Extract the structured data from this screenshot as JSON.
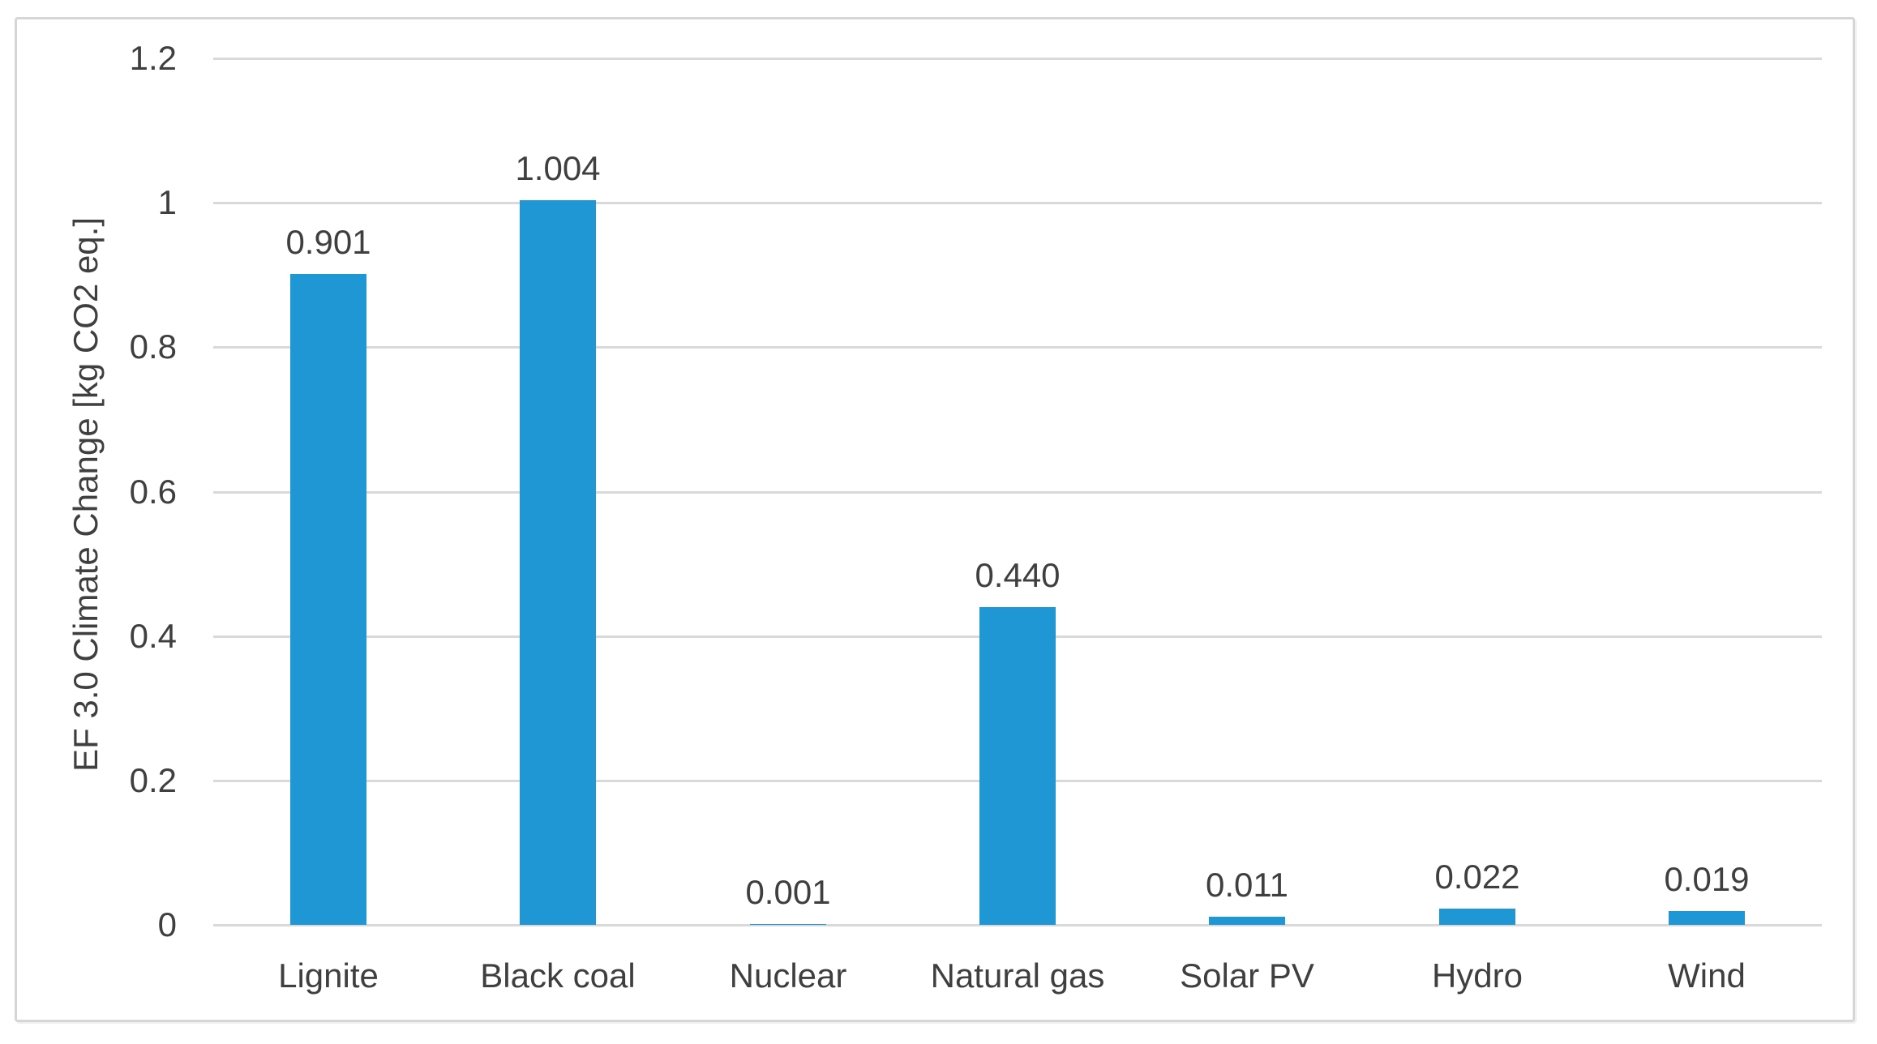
{
  "chart_data": {
    "type": "bar",
    "title": "",
    "xlabel": "",
    "ylabel": "EF 3.0 Climate Change [kg CO2 eq.]",
    "categories": [
      "Lignite",
      "Black coal",
      "Nuclear",
      "Natural gas",
      "Solar PV",
      "Hydro",
      "Wind"
    ],
    "values": [
      0.901,
      1.004,
      0.001,
      0.44,
      0.011,
      0.022,
      0.019
    ],
    "bar_value_labels": [
      "0.901",
      "1.004",
      "0.001",
      "0.440",
      "0.011",
      "0.022",
      "0.019"
    ],
    "ylim": [
      0,
      1.2
    ],
    "ytick_interval": 0.2,
    "yticks": [
      {
        "label": "0",
        "value": 0.0
      },
      {
        "label": "0.2",
        "value": 0.2
      },
      {
        "label": "0.4",
        "value": 0.4
      },
      {
        "label": "0.6",
        "value": 0.6
      },
      {
        "label": "0.8",
        "value": 0.8
      },
      {
        "label": "1",
        "value": 1.0
      },
      {
        "label": "1.2",
        "value": 1.2
      }
    ],
    "grid": true,
    "legend": false,
    "bar_color": "#1e97d4",
    "gridline_color": "#d9d9d9",
    "text_color": "#3f3f3f",
    "frame_border_color": "#d6d6d6",
    "background_color": "#ffffff"
  }
}
